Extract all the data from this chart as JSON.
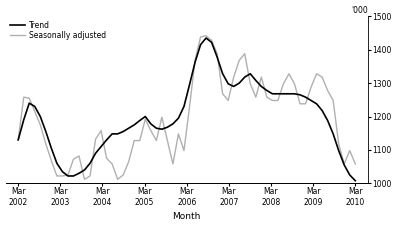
{
  "xlabel": "Month",
  "ylabel_right": "'000",
  "ylim": [
    1000,
    1500
  ],
  "yticks": [
    1000,
    1100,
    1200,
    1300,
    1400,
    1500
  ],
  "legend_trend": "Trend",
  "legend_seasonal": "Seasonally adjusted",
  "trend_color": "#000000",
  "seasonal_color": "#b0b0b0",
  "trend_linewidth": 1.2,
  "seasonal_linewidth": 1.0,
  "background_color": "#ffffff",
  "xtick_labels": [
    "Mar\n2002",
    "Mar\n2003",
    "Mar\n2004",
    "Mar\n2005",
    "Mar\n2006",
    "Mar\n2007",
    "Mar\n2008",
    "Mar\n2009",
    "Mar\n2010"
  ],
  "trend_data": [
    1130,
    1190,
    1240,
    1230,
    1200,
    1155,
    1105,
    1060,
    1035,
    1022,
    1022,
    1030,
    1040,
    1060,
    1090,
    1110,
    1130,
    1148,
    1148,
    1155,
    1165,
    1175,
    1188,
    1200,
    1178,
    1165,
    1162,
    1168,
    1178,
    1195,
    1230,
    1295,
    1362,
    1415,
    1435,
    1422,
    1378,
    1328,
    1298,
    1290,
    1300,
    1318,
    1328,
    1308,
    1290,
    1278,
    1268,
    1268,
    1268,
    1268,
    1268,
    1265,
    1258,
    1248,
    1238,
    1218,
    1188,
    1148,
    1098,
    1055,
    1025,
    1008
  ],
  "seasonal_data": [
    1130,
    1258,
    1255,
    1215,
    1175,
    1118,
    1068,
    1022,
    1022,
    1025,
    1072,
    1082,
    1012,
    1022,
    1132,
    1158,
    1075,
    1058,
    1012,
    1025,
    1065,
    1128,
    1128,
    1192,
    1158,
    1128,
    1198,
    1128,
    1058,
    1148,
    1098,
    1228,
    1368,
    1438,
    1442,
    1428,
    1388,
    1268,
    1248,
    1318,
    1368,
    1388,
    1298,
    1258,
    1318,
    1258,
    1248,
    1248,
    1298,
    1328,
    1298,
    1238,
    1238,
    1288,
    1328,
    1318,
    1278,
    1248,
    1118,
    1058,
    1098,
    1058
  ]
}
